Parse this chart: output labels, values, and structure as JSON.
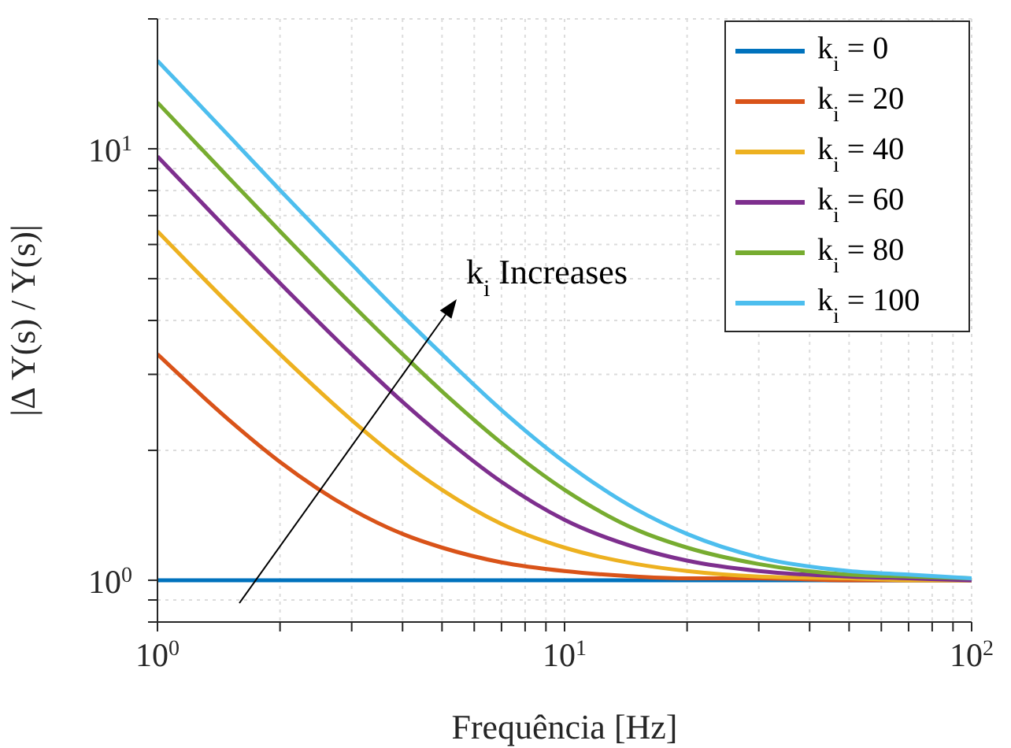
{
  "chart_data": {
    "type": "line",
    "xlabel": "Frequência [Hz]",
    "ylabel": "|Δ Y(s) / Y(s)|",
    "log": "xy",
    "grid": true,
    "legend": "top right",
    "x": [
      1,
      1.5,
      2,
      3,
      4,
      5,
      7,
      10,
      15,
      20,
      30,
      50,
      70,
      100
    ],
    "xlim": [
      1,
      100
    ],
    "xticks": [
      {
        "value": 1,
        "label": "10$^{0}$"
      },
      {
        "value": 2,
        "label": null
      },
      {
        "value": 3,
        "label": null
      },
      {
        "value": 4,
        "label": null
      },
      {
        "value": 5,
        "label": null
      },
      {
        "value": 6,
        "label": null
      },
      {
        "value": 7,
        "label": null
      },
      {
        "value": 8,
        "label": null
      },
      {
        "value": 9,
        "label": null
      },
      {
        "value": 10,
        "label": "10$^{1}$"
      },
      {
        "value": 20,
        "label": null
      },
      {
        "value": 30,
        "label": null
      },
      {
        "value": 40,
        "label": null
      },
      {
        "value": 50,
        "label": null
      },
      {
        "value": 60,
        "label": null
      },
      {
        "value": 70,
        "label": null
      },
      {
        "value": 80,
        "label": null
      },
      {
        "value": 90,
        "label": null
      },
      {
        "value": 100,
        "label": "10$^{2}$"
      }
    ],
    "ylim": [
      0.8,
      20
    ],
    "yticks": [
      {
        "value": 0.8,
        "label": null
      },
      {
        "value": 0.9,
        "label": null
      },
      {
        "value": 1,
        "label": "10$^{0}$"
      },
      {
        "value": 2,
        "label": null
      },
      {
        "value": 3,
        "label": null
      },
      {
        "value": 4,
        "label": null
      },
      {
        "value": 5,
        "label": null
      },
      {
        "value": 6,
        "label": null
      },
      {
        "value": 7,
        "label": null
      },
      {
        "value": 8,
        "label": null
      },
      {
        "value": 9,
        "label": null
      },
      {
        "value": 10,
        "label": "10$^{1}$"
      },
      {
        "value": 20,
        "label": null
      }
    ],
    "series": [
      {
        "name": "k$_{i}$ = 0",
        "color": "#0072bd",
        "values": [
          1,
          1,
          1,
          1,
          1,
          1,
          1,
          1,
          1,
          1,
          1,
          1,
          1,
          1
        ]
      },
      {
        "name": "k$_{i}$ = 20",
        "color": "#d95319",
        "values": [
          3.34,
          2.35,
          1.88,
          1.46,
          1.28,
          1.19,
          1.1,
          1.05,
          1.02,
          1.01,
          1.01,
          1,
          1,
          1
        ]
      },
      {
        "name": "k$_{i}$ = 40",
        "color": "#edb120",
        "values": [
          6.44,
          4.36,
          3.34,
          2.35,
          1.88,
          1.62,
          1.35,
          1.19,
          1.09,
          1.05,
          1.02,
          1.01,
          1,
          1
        ]
      },
      {
        "name": "k$_{i}$ = 60",
        "color": "#7e2f8e",
        "values": [
          9.6,
          6.44,
          4.88,
          3.34,
          2.59,
          2.16,
          1.69,
          1.38,
          1.19,
          1.11,
          1.05,
          1.02,
          1.01,
          1
        ]
      },
      {
        "name": "k$_{i}$ = 80",
        "color": "#77ac30",
        "values": [
          12.8,
          8.55,
          6.44,
          4.36,
          3.34,
          2.74,
          2.08,
          1.62,
          1.31,
          1.19,
          1.09,
          1.03,
          1.02,
          1.01
        ]
      },
      {
        "name": "k$_{i}$ = 100",
        "color": "#4dbeee",
        "values": [
          16,
          10.7,
          8.02,
          5.4,
          4.1,
          3.34,
          2.48,
          1.88,
          1.46,
          1.28,
          1.13,
          1.05,
          1.03,
          1.01
        ]
      }
    ],
    "annotations": [
      "k$_{i}$ Increases"
    ]
  }
}
